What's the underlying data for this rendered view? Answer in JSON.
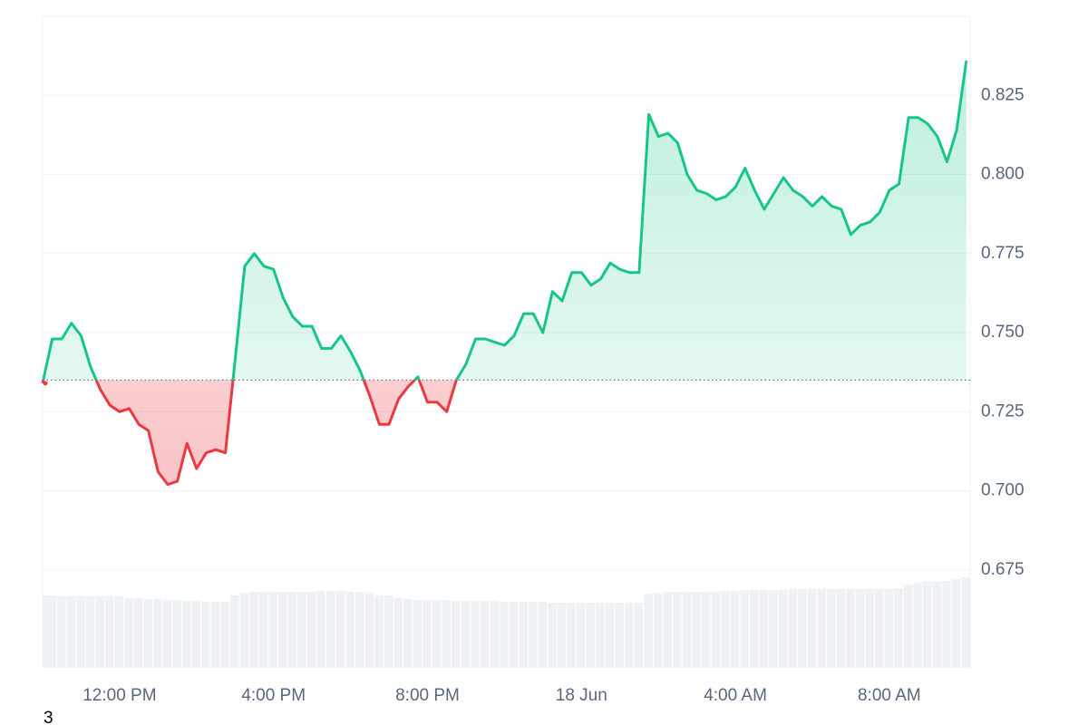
{
  "chart_data": {
    "type": "line",
    "x": [
      10,
      10.25,
      10.5,
      10.75,
      11,
      11.25,
      11.5,
      11.75,
      12,
      12.25,
      12.5,
      12.75,
      13,
      13.25,
      13.5,
      13.75,
      14,
      14.25,
      14.5,
      14.75,
      15,
      15.25,
      15.5,
      15.75,
      16,
      16.25,
      16.5,
      16.75,
      17,
      17.25,
      17.5,
      17.75,
      18,
      18.25,
      18.5,
      18.75,
      19,
      19.25,
      19.5,
      19.75,
      20,
      20.25,
      20.5,
      20.75,
      21,
      21.25,
      21.5,
      21.75,
      22,
      22.25,
      22.5,
      22.75,
      23,
      23.25,
      23.5,
      23.75,
      24,
      24.25,
      24.5,
      24.75,
      25,
      25.25,
      25.5,
      25.75,
      26,
      26.25,
      26.5,
      26.75,
      27,
      27.25,
      27.5,
      27.75,
      28,
      28.25,
      28.5,
      28.75,
      29,
      29.25,
      29.5,
      29.75,
      30,
      30.25,
      30.5,
      30.75,
      31,
      31.25,
      31.5,
      31.75,
      32,
      32.25,
      32.5,
      32.75,
      33,
      33.25,
      33.5,
      33.75,
      34
    ],
    "values": [
      0.734,
      0.748,
      0.748,
      0.753,
      0.749,
      0.739,
      0.732,
      0.727,
      0.725,
      0.726,
      0.721,
      0.719,
      0.706,
      0.702,
      0.703,
      0.715,
      0.707,
      0.712,
      0.713,
      0.712,
      0.741,
      0.771,
      0.775,
      0.771,
      0.77,
      0.761,
      0.755,
      0.752,
      0.752,
      0.745,
      0.745,
      0.749,
      0.744,
      0.738,
      0.73,
      0.721,
      0.721,
      0.729,
      0.733,
      0.736,
      0.728,
      0.728,
      0.725,
      0.735,
      0.74,
      0.748,
      0.748,
      0.747,
      0.746,
      0.749,
      0.756,
      0.756,
      0.75,
      0.763,
      0.76,
      0.769,
      0.769,
      0.765,
      0.767,
      0.772,
      0.77,
      0.769,
      0.769,
      0.819,
      0.812,
      0.813,
      0.81,
      0.8,
      0.795,
      0.794,
      0.792,
      0.793,
      0.796,
      0.802,
      0.795,
      0.789,
      0.794,
      0.799,
      0.795,
      0.793,
      0.79,
      0.793,
      0.79,
      0.789,
      0.781,
      0.784,
      0.785,
      0.788,
      0.795,
      0.797,
      0.818,
      0.818,
      0.816,
      0.812,
      0.804,
      0.814,
      0.836
    ],
    "volume": [
      80,
      80,
      79,
      79,
      79,
      79,
      79,
      79,
      79,
      77,
      77,
      76,
      76,
      75,
      75,
      74,
      74,
      73,
      73,
      73,
      80,
      83,
      84,
      84,
      84,
      84,
      84,
      84,
      84,
      85,
      85,
      85,
      84,
      84,
      83,
      80,
      80,
      77,
      76,
      75,
      75,
      75,
      75,
      74,
      74,
      74,
      74,
      74,
      73,
      73,
      73,
      73,
      73,
      72,
      72,
      72,
      72,
      72,
      72,
      72,
      72,
      72,
      72,
      82,
      83,
      84,
      84,
      84,
      84,
      84,
      84,
      85,
      85,
      86,
      86,
      86,
      86,
      86,
      87,
      87,
      87,
      87,
      87,
      87,
      87,
      87,
      87,
      87,
      87,
      88,
      92,
      94,
      95,
      95,
      96,
      98,
      100
    ],
    "volume_lim": [
      0,
      100
    ],
    "reference": 0.735,
    "up_color": "#16c784",
    "down_color": "#ea3943",
    "volume_color": "#eff2f5",
    "xlim": [
      10,
      34.1
    ],
    "xticks": [
      {
        "value": 12,
        "label": "12:00 PM"
      },
      {
        "value": 16,
        "label": "4:00 PM"
      },
      {
        "value": 20,
        "label": "8:00 PM"
      },
      {
        "value": 24,
        "label": "18 Jun"
      },
      {
        "value": 28,
        "label": "4:00 AM"
      },
      {
        "value": 32,
        "label": "8:00 AM"
      }
    ],
    "ylim": [
      0.644,
      0.85
    ],
    "yticks": [
      0.675,
      {
        "value": 0.7,
        "label": "0.700"
      },
      0.725,
      {
        "value": 0.75,
        "label": "0.750"
      },
      0.775,
      {
        "value": 0.8,
        "label": "0.800"
      },
      0.825
    ],
    "grid": true
  },
  "corner_label": "3"
}
